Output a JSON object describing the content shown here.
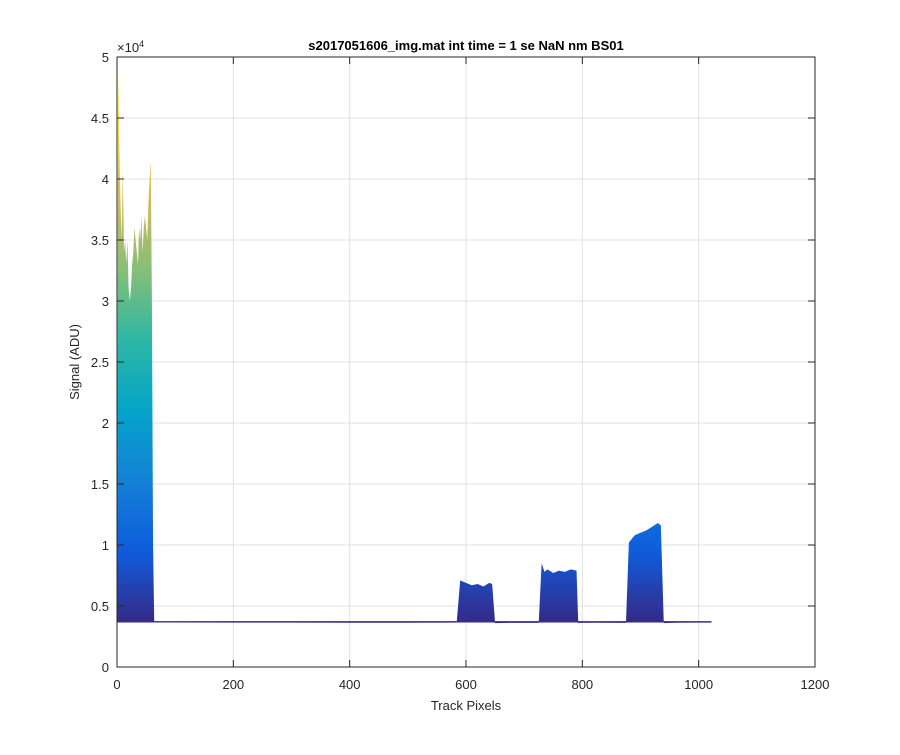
{
  "chart_data": {
    "type": "area",
    "title": "s2017051606_img.mat int time = 1 se  NaN nm BS01",
    "xlabel": "Track Pixels",
    "ylabel": "Signal (ADU)",
    "xlim": [
      0,
      1200
    ],
    "ylim": [
      0,
      50000
    ],
    "exponent_label": "×10",
    "exponent_power": "4",
    "grid": true,
    "legend": "none",
    "xticks": [
      0,
      200,
      400,
      600,
      800,
      1000,
      1200
    ],
    "xtick_labels": [
      "0",
      "200",
      "400",
      "600",
      "800",
      "1000",
      "1200"
    ],
    "yticks": [
      0,
      5000,
      10000,
      15000,
      20000,
      25000,
      30000,
      35000,
      40000,
      45000,
      50000
    ],
    "ytick_labels": [
      "0",
      "0.5",
      "1",
      "1.5",
      "2",
      "2.5",
      "3",
      "3.5",
      "4",
      "4.5",
      "5"
    ],
    "baseline": 3700,
    "colormap": [
      "#352a87",
      "#0f5cdd",
      "#1481d6",
      "#06a4ca",
      "#2eb7a4",
      "#87bf77",
      "#d1bb59",
      "#fed83a",
      "#f9fb0e"
    ],
    "series": [
      {
        "x": [
          0,
          2,
          4,
          6,
          8,
          10,
          12,
          14,
          16,
          18,
          20,
          22,
          24,
          26,
          28,
          30,
          32,
          34,
          36,
          38,
          40,
          42,
          44,
          46,
          48,
          50,
          52,
          54,
          56,
          58,
          60,
          62,
          64,
          66,
          68,
          70,
          100,
          200,
          300,
          400,
          500,
          580,
          584,
          590,
          600,
          610,
          620,
          630,
          640,
          645,
          650,
          680,
          725,
          730,
          735,
          740,
          750,
          760,
          770,
          780,
          790,
          793,
          797,
          820,
          875,
          880,
          885,
          890,
          900,
          910,
          920,
          930,
          935,
          940,
          960,
          1000,
          1022
        ],
        "y": [
          3700,
          49000,
          43000,
          38000,
          35000,
          41000,
          34000,
          35000,
          33000,
          35000,
          31000,
          30000,
          31000,
          33000,
          34000,
          36000,
          35000,
          34000,
          33000,
          36000,
          35000,
          37000,
          34000,
          36000,
          37000,
          36000,
          35000,
          38000,
          40000,
          41500,
          30000,
          10000,
          3700,
          3680,
          3680,
          3660,
          3650,
          3640,
          3640,
          3630,
          3630,
          3640,
          3650,
          7100,
          6900,
          6700,
          6800,
          6600,
          6900,
          6800,
          3600,
          3620,
          3620,
          8500,
          7800,
          8000,
          7700,
          7900,
          7800,
          8000,
          7900,
          3600,
          3620,
          3630,
          3620,
          10200,
          10500,
          10800,
          11000,
          11200,
          11500,
          11800,
          11600,
          3600,
          3630,
          3640,
          3640
        ]
      }
    ]
  }
}
